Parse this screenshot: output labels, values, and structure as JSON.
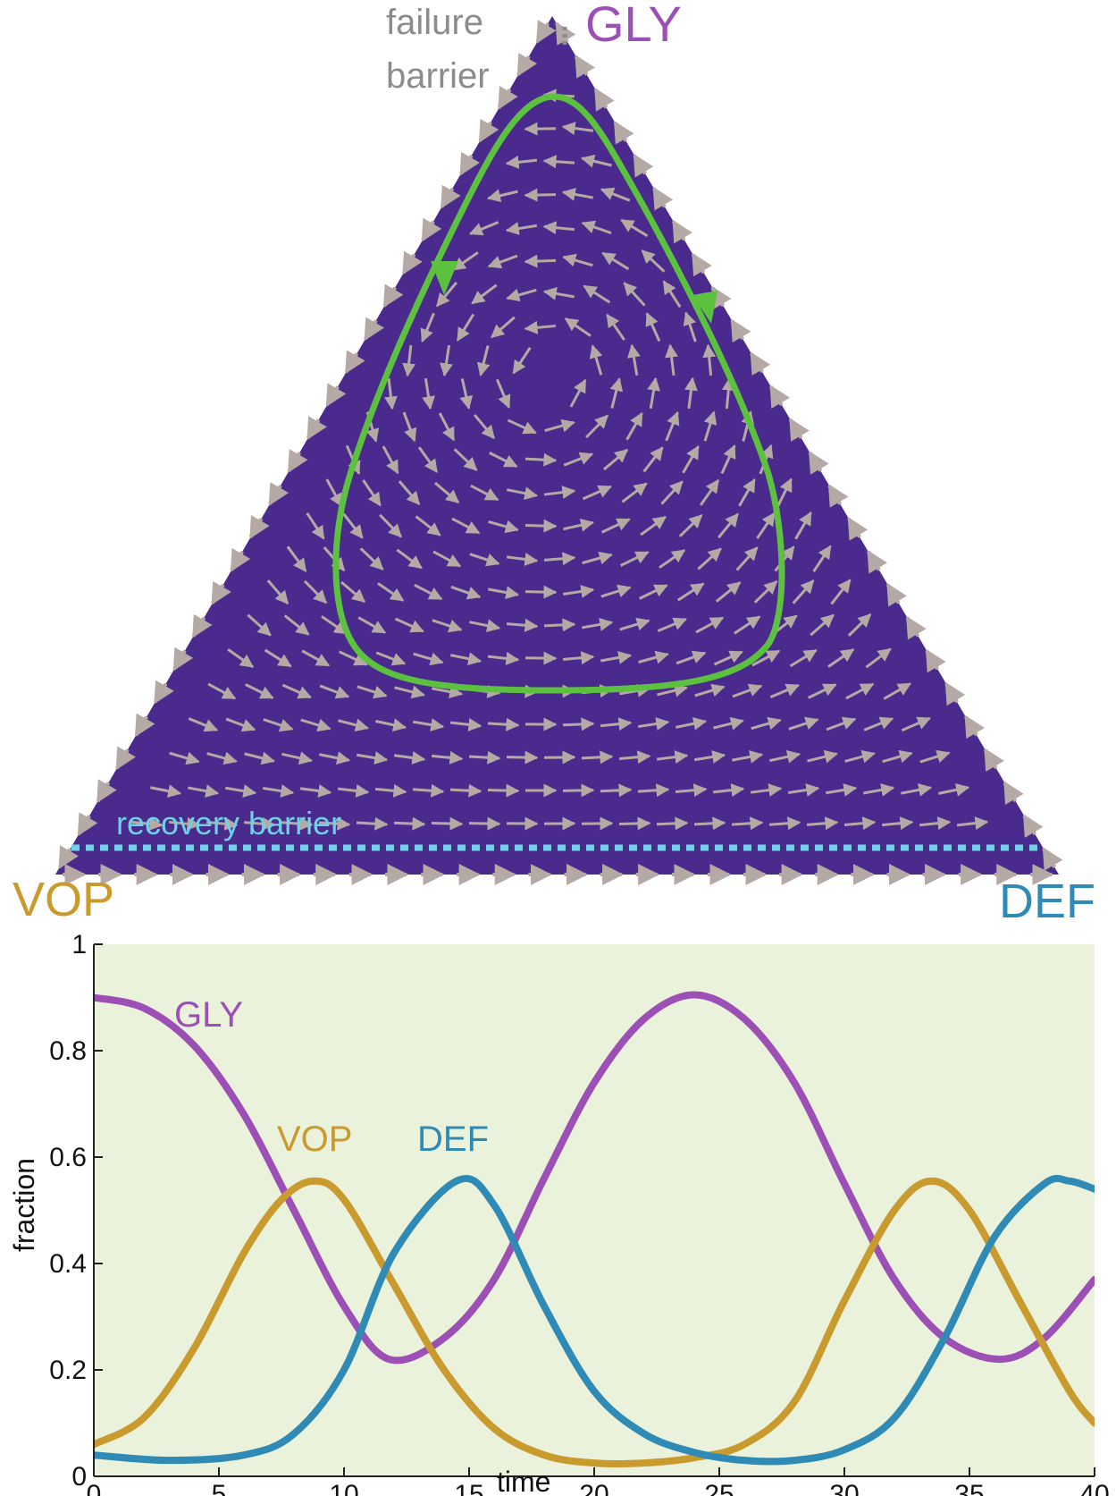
{
  "colors": {
    "triangle_fill": "#4a2a8c",
    "arrows": "#b5a9a5",
    "cycle": "#5cc13f",
    "recovery_line": "#6fd0e8",
    "gly": "#9c4fb4",
    "vop": "#c99a2e",
    "def": "#2f8ab5",
    "plot_bg": "#eaf2dc",
    "annotation_gray": "#8c8c8c"
  },
  "chart_data": [
    {
      "type": "ternary",
      "vertices": {
        "top": "GLY",
        "left": "VOP",
        "right": "DEF"
      },
      "annotations": {
        "failure": "failure",
        "barrier": "barrier",
        "recovery": "recovery barrier"
      },
      "recovery_barrier_gly_fraction": 0.03,
      "limit_cycle": "closed orbit, counter-clockwise",
      "vector_field": "rotational flow around an interior center"
    },
    {
      "type": "line",
      "xlabel": "time",
      "ylabel": "fraction",
      "xlim": [
        0,
        40
      ],
      "ylim": [
        0,
        1
      ],
      "xticks": [
        "0",
        "5",
        "10",
        "15",
        "20",
        "25",
        "30",
        "35",
        "40"
      ],
      "yticks": [
        "0",
        "0.2",
        "0.4",
        "0.6",
        "0.8",
        "1"
      ],
      "series": [
        {
          "name": "GLY",
          "x": [
            0,
            2,
            4,
            6,
            8,
            10,
            11.8,
            14,
            16,
            18,
            20,
            22,
            24,
            26,
            28,
            30,
            32,
            34,
            36.2,
            38,
            40
          ],
          "y": [
            0.9,
            0.88,
            0.81,
            0.68,
            0.5,
            0.32,
            0.22,
            0.26,
            0.37,
            0.56,
            0.74,
            0.86,
            0.905,
            0.86,
            0.74,
            0.55,
            0.37,
            0.26,
            0.22,
            0.26,
            0.37
          ]
        },
        {
          "name": "VOP",
          "x": [
            0,
            2,
            4,
            6,
            7.5,
            8.8,
            10,
            12,
            14,
            16,
            18,
            20,
            22,
            24,
            26,
            28,
            30,
            32,
            33.5,
            35,
            37,
            39,
            40
          ],
          "y": [
            0.06,
            0.11,
            0.24,
            0.42,
            0.52,
            0.555,
            0.52,
            0.36,
            0.2,
            0.09,
            0.04,
            0.025,
            0.025,
            0.035,
            0.06,
            0.14,
            0.33,
            0.5,
            0.555,
            0.5,
            0.33,
            0.16,
            0.1
          ]
        },
        {
          "name": "DEF",
          "x": [
            0,
            3,
            6,
            8,
            10,
            12,
            14.5,
            16,
            18,
            20,
            22,
            24,
            26,
            28,
            30,
            32,
            34,
            36,
            38,
            39,
            40
          ],
          "y": [
            0.04,
            0.03,
            0.04,
            0.08,
            0.2,
            0.42,
            0.555,
            0.51,
            0.32,
            0.16,
            0.08,
            0.045,
            0.03,
            0.03,
            0.05,
            0.11,
            0.26,
            0.45,
            0.55,
            0.555,
            0.54
          ]
        }
      ],
      "line_labels": {
        "gly": "GLY",
        "vop": "VOP",
        "def": "DEF"
      },
      "grid": false,
      "legend": "none"
    }
  ]
}
